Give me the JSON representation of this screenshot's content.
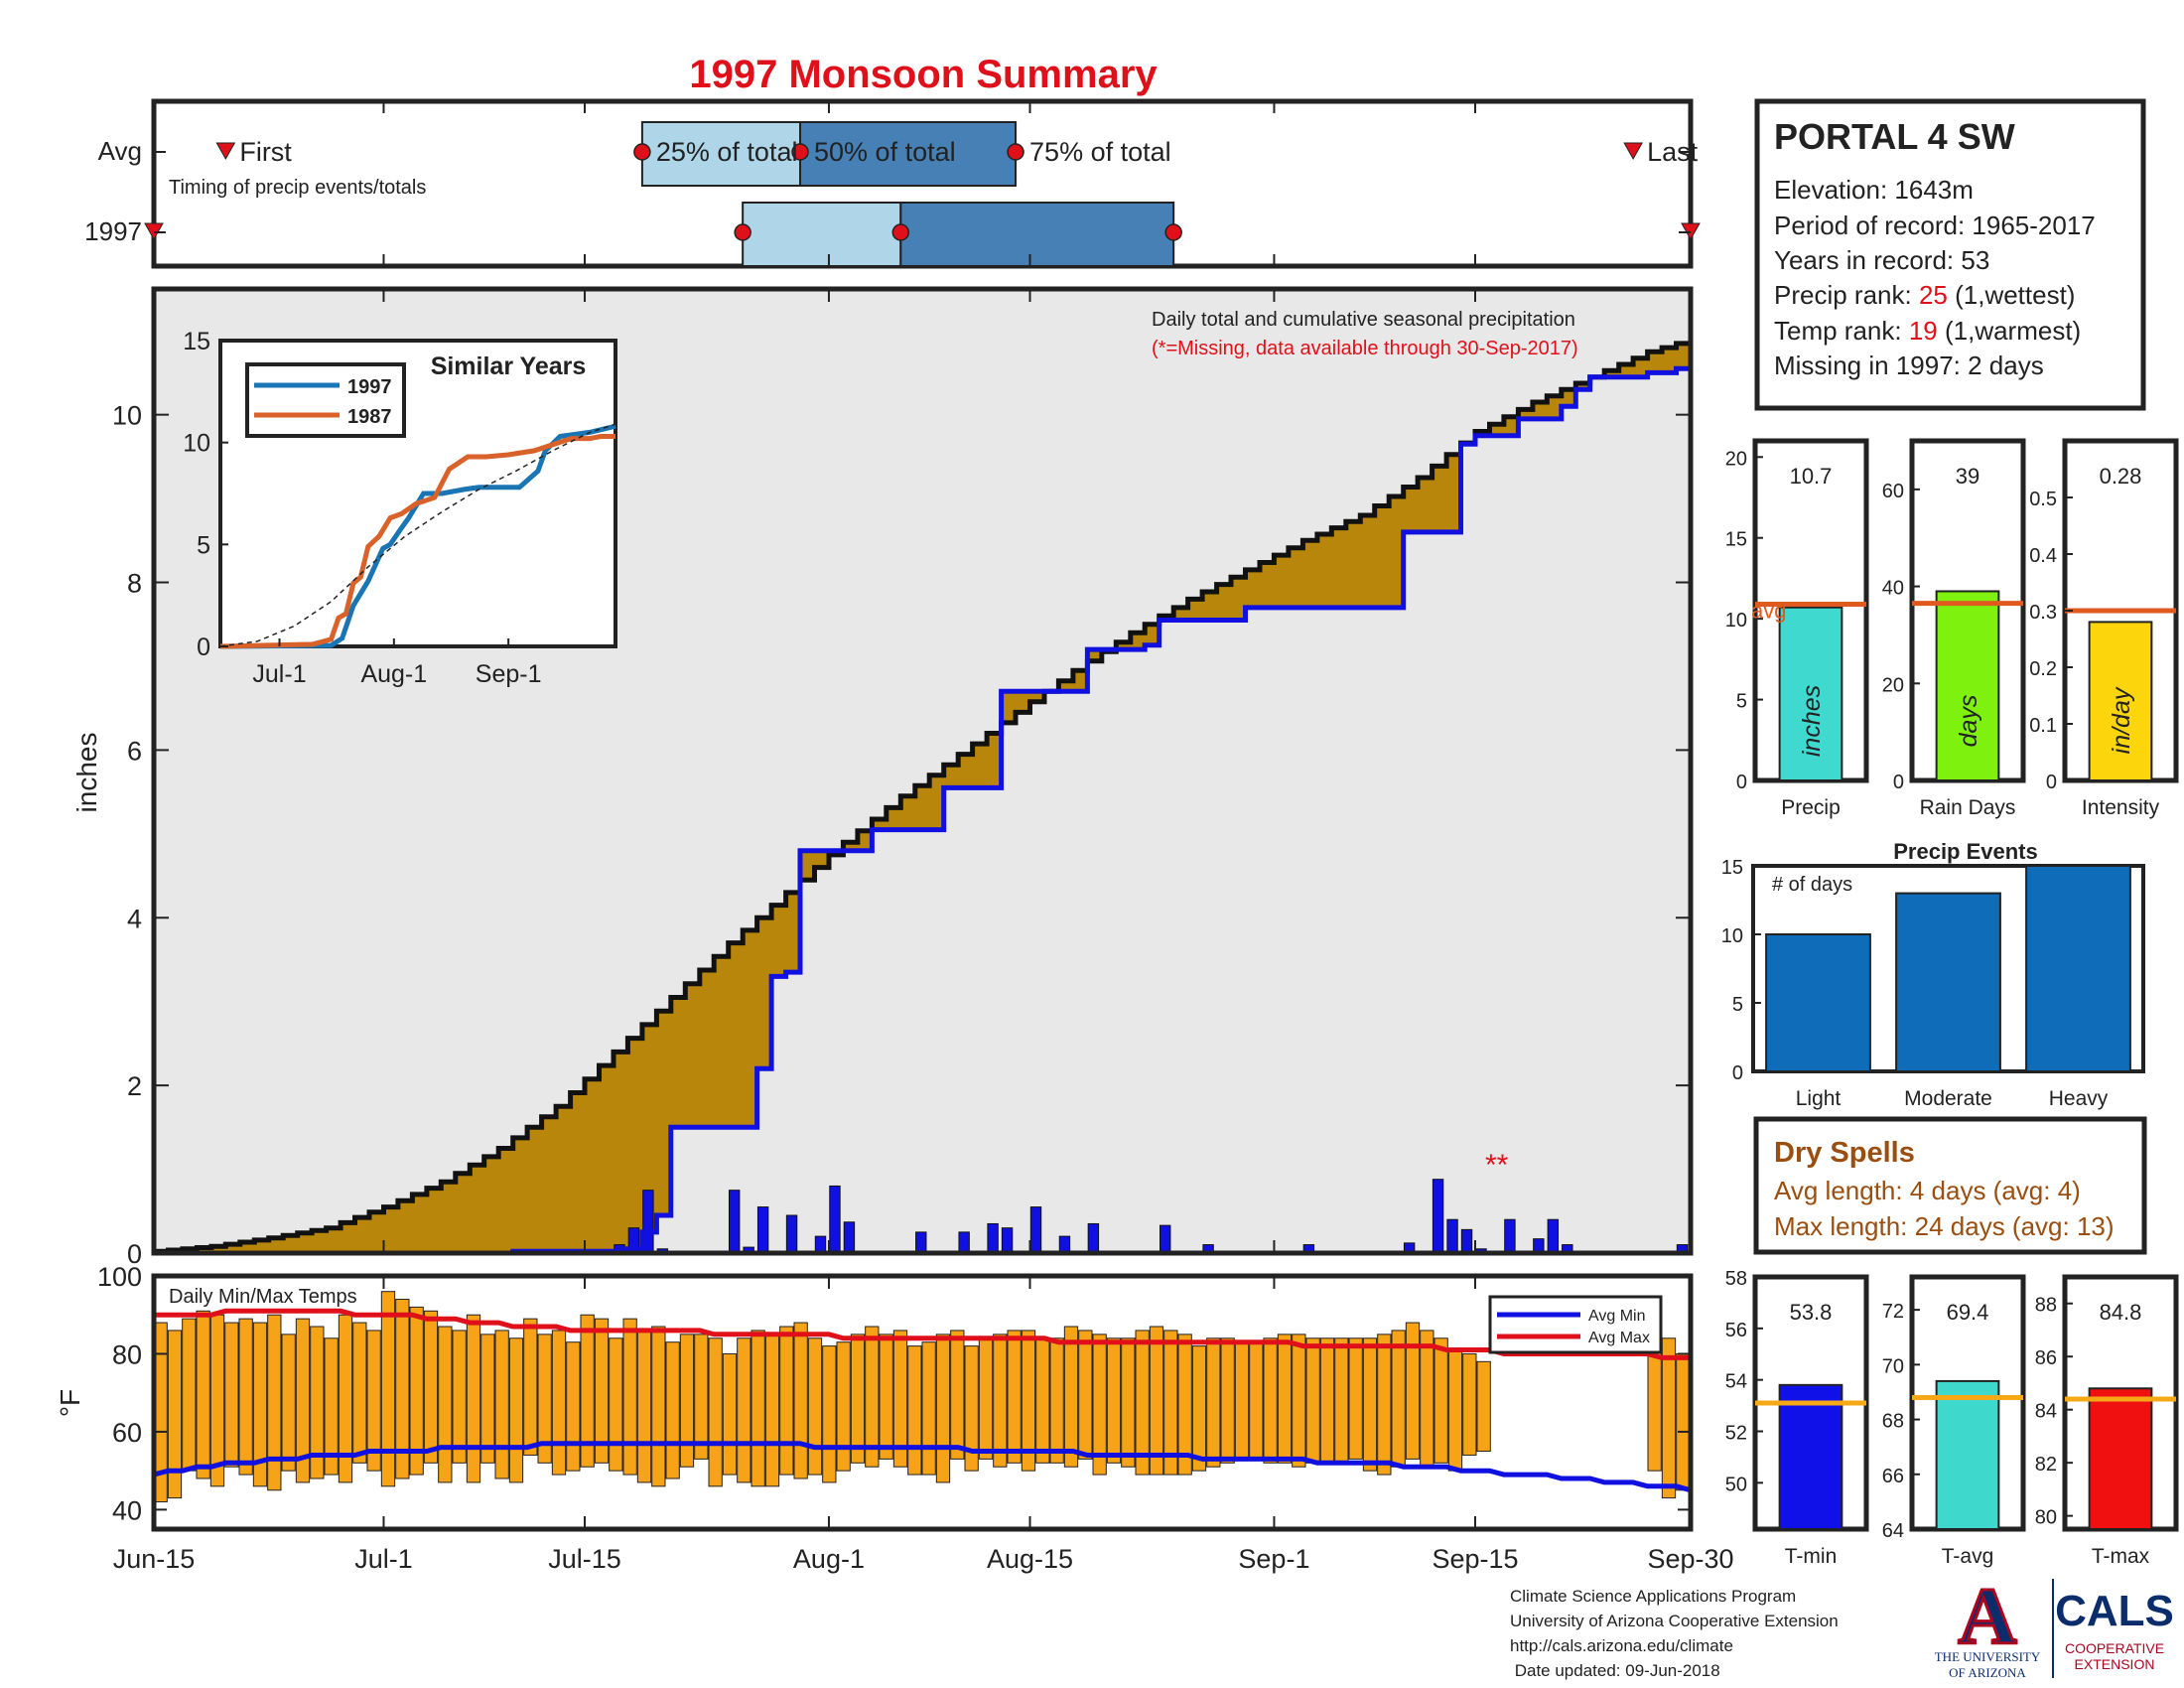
{
  "title": "1997 Monsoon Summary",
  "colors": {
    "title": "#e0101a",
    "frame": "#222222",
    "q_light": "#aed6e8",
    "q_dark": "#4680b4",
    "marker_red": "#e0101a",
    "cum_fill": "#b8860b",
    "cum_bg": "#e9e8e8",
    "blue": "#1010e0",
    "orange_bar": "#f6a317",
    "avg_line": "#e05a20",
    "rank_red": "#e0101a",
    "dry_brown": "#9a4e10",
    "series1997": "#1a75b4",
    "series1987": "#d9622b",
    "precip_bar": "#3fd9cf",
    "raindays_bar": "#7ef20e",
    "intensity_bar": "#fcd50c",
    "events_bar": "#0e6cb8",
    "tmin_bar": "#1010e8",
    "tavg_bar": "#3ed8cc",
    "tmax_bar": "#f01010",
    "temp_avg_line": "#f6a817",
    "ua_navy": "#0c2d6b",
    "ua_red": "#ab0520"
  },
  "timing": {
    "row_labels": [
      "Avg",
      "1997"
    ],
    "caption": "Timing of precip events/totals",
    "avg_labels": {
      "first": "First",
      "q25": "25% of total",
      "q50": "50% of total",
      "q75": "75% of total",
      "last": "Last"
    },
    "avg_days": {
      "first": 5,
      "q25": 34,
      "q50": 45,
      "q75": 60,
      "last": 103
    },
    "y1997_days": {
      "first": 0,
      "q25": 41,
      "q50": 52,
      "q75": 71,
      "last": 107
    }
  },
  "main": {
    "title_line": "Daily total and cumulative seasonal precipitation",
    "missing_line": "(*=Missing, data available through 30-Sep-2017)",
    "ylabel": "inches",
    "yticks": [
      "0",
      "2",
      "4",
      "6",
      "8",
      "10"
    ],
    "ylim": [
      0,
      11.5
    ],
    "missing_marker": "**"
  },
  "x_axis": {
    "ticks": [
      {
        "label": "Jun-15",
        "day": 0
      },
      {
        "label": "Jul-1",
        "day": 16
      },
      {
        "label": "Jul-15",
        "day": 30
      },
      {
        "label": "Aug-1",
        "day": 47
      },
      {
        "label": "Aug-15",
        "day": 61
      },
      {
        "label": "Sep-1",
        "day": 78
      },
      {
        "label": "Sep-15",
        "day": 92
      },
      {
        "label": "Sep-30",
        "day": 107
      }
    ]
  },
  "chart_data": [
    {
      "type": "area",
      "name": "cumulative-precip",
      "title": "Daily total and cumulative seasonal precipitation",
      "ylabel": "inches",
      "xlim": [
        0,
        107
      ],
      "ylim": [
        0,
        11.5
      ],
      "avg_cumulative": {
        "days": [
          0,
          4,
          8,
          12,
          16,
          20,
          24,
          28,
          32,
          36,
          40,
          44,
          48,
          52,
          56,
          60,
          64,
          68,
          72,
          76,
          80,
          84,
          88,
          92,
          96,
          100,
          104,
          107
        ],
        "values": [
          0.02,
          0.08,
          0.18,
          0.3,
          0.55,
          0.85,
          1.25,
          1.75,
          2.4,
          3.05,
          3.7,
          4.3,
          4.9,
          5.45,
          5.95,
          6.45,
          6.95,
          7.4,
          7.8,
          8.15,
          8.5,
          8.8,
          9.25,
          9.8,
          10.15,
          10.45,
          10.75,
          10.9
        ]
      },
      "y1997_cumulative": {
        "days": [
          0,
          25,
          33,
          34,
          35,
          36,
          37,
          42,
          43,
          44,
          45,
          49,
          50,
          51,
          55,
          57,
          59,
          60,
          65,
          69,
          70,
          75,
          76,
          86,
          87,
          90,
          91,
          92,
          95,
          98,
          99,
          100,
          104,
          106,
          107
        ],
        "values": [
          0.0,
          0.02,
          0.05,
          0.25,
          0.45,
          1.5,
          1.5,
          2.2,
          3.3,
          3.35,
          4.8,
          4.8,
          5.05,
          5.05,
          5.55,
          5.55,
          6.7,
          6.7,
          7.2,
          7.25,
          7.55,
          7.55,
          7.7,
          7.7,
          8.6,
          8.6,
          9.65,
          9.75,
          9.95,
          10.1,
          10.3,
          10.45,
          10.5,
          10.55,
          10.8
        ]
      },
      "daily_1997": {
        "days": [
          32,
          33,
          34,
          35,
          40,
          41,
          42,
          44,
          46,
          47,
          48,
          53,
          56,
          58,
          59,
          61,
          63,
          65,
          70,
          73,
          80,
          87,
          89,
          90,
          91,
          92,
          93,
          94,
          96,
          97,
          98,
          106
        ],
        "values": [
          0.1,
          0.3,
          0.75,
          0.05,
          0.75,
          0.07,
          0.55,
          0.45,
          0.2,
          0.8,
          0.37,
          0.25,
          0.25,
          0.35,
          0.3,
          0.55,
          0.2,
          0.35,
          0.33,
          0.1,
          0.1,
          0.12,
          0.88,
          0.4,
          0.28,
          0.05,
          0.02,
          0.4,
          0.17,
          0.4,
          0.1,
          0.1
        ]
      }
    },
    {
      "type": "line",
      "name": "similar-years",
      "title": "Similar Years",
      "x_tick_labels": [
        "Jul-1",
        "Aug-1",
        "Sep-1"
      ],
      "y_tick_labels": [
        "0",
        "5",
        "10",
        "15"
      ],
      "ylim": [
        0,
        15
      ],
      "xlim": [
        0,
        107
      ],
      "series": [
        {
          "name": "1997",
          "color": "#1a75b4",
          "days": [
            0,
            30,
            33,
            36,
            40,
            44,
            46,
            49,
            51,
            55,
            60,
            66,
            70,
            72,
            76,
            81,
            86,
            88,
            92,
            100,
            107
          ],
          "values": [
            0,
            0.05,
            0.4,
            2.0,
            3.2,
            4.8,
            5.0,
            5.8,
            6.3,
            7.5,
            7.5,
            7.7,
            7.8,
            7.8,
            7.8,
            7.8,
            8.6,
            9.6,
            10.3,
            10.5,
            10.8
          ]
        },
        {
          "name": "1987",
          "color": "#d9622b",
          "days": [
            0,
            25,
            30,
            32,
            34,
            36,
            38,
            40,
            43,
            46,
            49,
            53,
            58,
            62,
            67,
            72,
            78,
            85,
            90,
            95,
            100,
            103,
            107
          ],
          "values": [
            0,
            0.1,
            0.35,
            1.4,
            1.6,
            3.1,
            3.4,
            4.9,
            5.4,
            6.3,
            6.5,
            7.0,
            7.3,
            8.7,
            9.3,
            9.3,
            9.4,
            9.6,
            9.9,
            10.2,
            10.2,
            10.3,
            10.3
          ]
        },
        {
          "name": "avg",
          "color": "#222222",
          "days": [
            0,
            10,
            20,
            30,
            40,
            50,
            60,
            70,
            80,
            90,
            100,
            107
          ],
          "values": [
            0,
            0.25,
            1.0,
            2.2,
            3.9,
            5.4,
            6.6,
            7.7,
            8.6,
            9.6,
            10.5,
            10.9
          ]
        }
      ]
    },
    {
      "type": "bar",
      "name": "daily-temps",
      "title": "Daily Min/Max Temps",
      "ylabel": "°F",
      "ylim": [
        35,
        100
      ],
      "yticks": [
        "40",
        "60",
        "80",
        "100"
      ],
      "legend": [
        "Avg Min",
        "Avg Max"
      ],
      "days": [
        0,
        1,
        2,
        3,
        4,
        5,
        6,
        7,
        8,
        9,
        10,
        11,
        12,
        13,
        14,
        15,
        16,
        17,
        18,
        19,
        20,
        21,
        22,
        23,
        24,
        25,
        26,
        27,
        28,
        29,
        30,
        31,
        32,
        33,
        34,
        35,
        36,
        37,
        38,
        39,
        40,
        41,
        42,
        43,
        44,
        45,
        46,
        47,
        48,
        49,
        50,
        51,
        52,
        53,
        54,
        55,
        56,
        57,
        58,
        59,
        60,
        61,
        62,
        63,
        64,
        65,
        66,
        67,
        68,
        69,
        70,
        71,
        72,
        73,
        74,
        75,
        76,
        77,
        78,
        79,
        80,
        81,
        82,
        83,
        84,
        85,
        86,
        87,
        88,
        89,
        90,
        91,
        92,
        93,
        94,
        95,
        96,
        97,
        98,
        99,
        100,
        101,
        102,
        103,
        104,
        105,
        106,
        107
      ],
      "tmax": [
        88,
        86,
        89,
        91,
        90,
        88,
        89,
        88,
        90,
        85,
        89,
        87,
        84,
        90,
        88,
        86,
        96,
        94,
        92,
        91,
        87,
        86,
        90,
        85,
        86,
        84,
        89,
        85,
        86,
        83,
        90,
        89,
        84,
        89,
        86,
        87,
        83,
        85,
        85,
        84,
        80,
        84,
        86,
        85,
        87,
        88,
        84,
        82,
        83,
        85,
        87,
        85,
        86,
        82,
        83,
        85,
        86,
        82,
        84,
        85,
        86,
        86,
        84,
        84,
        87,
        86,
        85,
        84,
        84,
        86,
        87,
        86,
        85,
        82,
        84,
        84,
        83,
        83,
        84,
        85,
        85,
        84,
        84,
        84,
        84,
        84,
        85,
        86,
        88,
        86,
        84,
        81,
        80,
        78,
        null,
        null,
        null,
        null,
        null,
        null,
        null,
        null,
        null,
        null,
        null,
        82,
        84,
        80
      ],
      "tmin": [
        42,
        43,
        50,
        48,
        46,
        51,
        49,
        46,
        45,
        50,
        47,
        48,
        49,
        47,
        52,
        50,
        46,
        48,
        49,
        52,
        47,
        52,
        47,
        52,
        48,
        47,
        54,
        52,
        49,
        50,
        51,
        52,
        50,
        49,
        47,
        46,
        48,
        51,
        53,
        46,
        49,
        47,
        46,
        46,
        49,
        48,
        49,
        47,
        50,
        52,
        51,
        53,
        51,
        49,
        49,
        47,
        53,
        50,
        53,
        51,
        52,
        50,
        52,
        52,
        51,
        53,
        49,
        52,
        51,
        49,
        49,
        49,
        49,
        50,
        51,
        52,
        53,
        53,
        52,
        52,
        51,
        52,
        52,
        52,
        53,
        50,
        49,
        51,
        53,
        51,
        52,
        50,
        54,
        55,
        null,
        null,
        null,
        null,
        null,
        null,
        null,
        null,
        null,
        null,
        null,
        50,
        43,
        45
      ],
      "avg_max": [
        90,
        90,
        90,
        90,
        90,
        91,
        91,
        91,
        91,
        91,
        91,
        91,
        91,
        91,
        90,
        90,
        90,
        90,
        90,
        89,
        89,
        89,
        88,
        88,
        88,
        87,
        87,
        87,
        87,
        86,
        86,
        86,
        86,
        86,
        86,
        86,
        86,
        86,
        86,
        85,
        85,
        85,
        85,
        85,
        85,
        85,
        85,
        85,
        84,
        84,
        84,
        84,
        84,
        84,
        84,
        84,
        84,
        84,
        84,
        84,
        84,
        84,
        84,
        83,
        83,
        83,
        83,
        83,
        83,
        83,
        83,
        83,
        83,
        83,
        83,
        83,
        83,
        83,
        83,
        83,
        82,
        82,
        82,
        82,
        82,
        82,
        82,
        82,
        82,
        82,
        81,
        81,
        81,
        81,
        80,
        80,
        80,
        80,
        80,
        80,
        80,
        80,
        80,
        80,
        80,
        79,
        79,
        79
      ],
      "avg_min": [
        49,
        50,
        50,
        51,
        51,
        52,
        52,
        52,
        53,
        53,
        53,
        54,
        54,
        54,
        54,
        55,
        55,
        55,
        55,
        55,
        56,
        56,
        56,
        56,
        56,
        56,
        56,
        57,
        57,
        57,
        57,
        57,
        57,
        57,
        57,
        57,
        57,
        57,
        57,
        57,
        57,
        57,
        57,
        57,
        57,
        57,
        56,
        56,
        56,
        56,
        56,
        56,
        56,
        56,
        56,
        56,
        56,
        55,
        55,
        55,
        55,
        55,
        55,
        55,
        55,
        54,
        54,
        54,
        54,
        54,
        54,
        54,
        54,
        53,
        53,
        53,
        53,
        53,
        53,
        53,
        53,
        52,
        52,
        52,
        52,
        52,
        52,
        51,
        51,
        51,
        51,
        50,
        50,
        50,
        49,
        49,
        49,
        49,
        48,
        48,
        48,
        47,
        47,
        47,
        46,
        46,
        46,
        45
      ]
    },
    {
      "type": "bar",
      "name": "seasonal-totals",
      "panels": [
        {
          "name": "precip",
          "xlabel": "Precip",
          "value": 10.7,
          "value_label": "10.7",
          "avg": 10.9,
          "avg_label": "avg",
          "ylim": [
            0,
            21
          ],
          "yticks": [
            "0",
            "5",
            "10",
            "15",
            "20"
          ],
          "ytick_values": [
            0,
            5,
            10,
            15,
            20
          ],
          "unit": "inches"
        },
        {
          "name": "rain-days",
          "xlabel": "Rain Days",
          "value": 39,
          "value_label": "39",
          "avg": 36.5,
          "ylim": [
            0,
            70
          ],
          "yticks": [
            "0",
            "20",
            "40",
            "60"
          ],
          "ytick_values": [
            0,
            20,
            40,
            60
          ],
          "unit": "days"
        },
        {
          "name": "intensity",
          "xlabel": "Intensity",
          "value": 0.28,
          "value_label": "0.28",
          "avg": 0.3,
          "ylim": [
            0,
            0.6
          ],
          "yticks": [
            "0",
            "0.1",
            "0.2",
            "0.3",
            "0.4",
            "0.5"
          ],
          "ytick_values": [
            0,
            0.1,
            0.2,
            0.3,
            0.4,
            0.5
          ],
          "unit": "in/day"
        }
      ]
    },
    {
      "type": "bar",
      "name": "precip-events",
      "title": "Precip Events",
      "ylabel_inset": "# of days",
      "categories": [
        "Light",
        "Moderate",
        "Heavy"
      ],
      "values": [
        10,
        13,
        15
      ],
      "ylim": [
        0,
        15
      ],
      "yticks": [
        "0",
        "5",
        "10",
        "15"
      ]
    },
    {
      "type": "bar",
      "name": "seasonal-temps",
      "panels": [
        {
          "name": "t-min",
          "xlabel": "T-min",
          "value": 53.8,
          "value_label": "53.8",
          "avg": 53.1,
          "ylim": [
            48.2,
            58
          ],
          "yticks": [
            "50",
            "52",
            "54",
            "56",
            "58"
          ],
          "ytick_values": [
            50,
            52,
            54,
            56,
            58
          ]
        },
        {
          "name": "t-avg",
          "xlabel": "T-avg",
          "value": 69.4,
          "value_label": "69.4",
          "avg": 68.8,
          "ylim": [
            64,
            73.2
          ],
          "yticks": [
            "64",
            "66",
            "68",
            "70",
            "72"
          ],
          "ytick_values": [
            64,
            66,
            68,
            70,
            72
          ]
        },
        {
          "name": "t-max",
          "xlabel": "T-max",
          "value": 84.8,
          "value_label": "84.8",
          "avg": 84.4,
          "ylim": [
            79.5,
            89
          ],
          "yticks": [
            "80",
            "82",
            "84",
            "86",
            "88"
          ],
          "ytick_values": [
            80,
            82,
            84,
            86,
            88
          ]
        }
      ]
    }
  ],
  "station": {
    "name": "PORTAL 4 SW",
    "elevation": "Elevation: 1643m",
    "period": "Period of record: 1965-2017",
    "years": "Years in record: 53",
    "precip_rank_prefix": "Precip rank: ",
    "precip_rank_value": "25",
    "precip_rank_suffix": " (1,wettest)",
    "temp_rank_prefix": "Temp rank: ",
    "temp_rank_value": "19",
    "temp_rank_suffix": " (1,warmest)",
    "missing": "Missing in 1997: 2 days"
  },
  "dry_spells": {
    "title": "Dry Spells",
    "avg": "Avg length: 4 days (avg: 4)",
    "max": "Max length: 24 days (avg: 13)"
  },
  "footer": {
    "lines": [
      "Climate Science Applications Program",
      "University of Arizona Cooperative Extension",
      "http://cals.arizona.edu/climate",
      " Date updated: 09-Jun-2018"
    ],
    "ua_line1": "THE UNIVERSITY",
    "ua_line2": "OF ARIZONA",
    "cals": "CALS",
    "cals_sub1": "COOPERATIVE",
    "cals_sub2": "EXTENSION",
    "ua_letter": "A"
  }
}
